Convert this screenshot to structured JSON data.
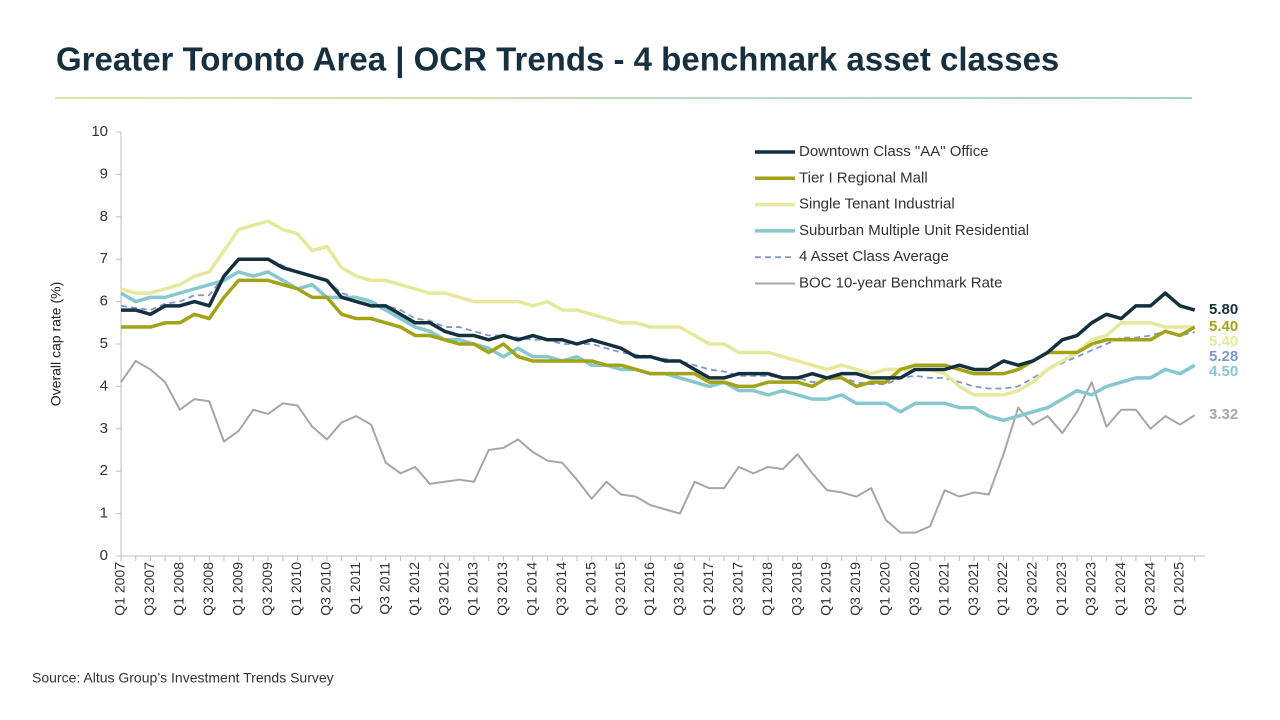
{
  "chart_data": {
    "type": "line",
    "title": "Greater Toronto Area | OCR Trends - 4 benchmark asset classes",
    "y_label": "Overall cap rate (%)",
    "source": "Source:  Altus Group’s Investment Trends Survey",
    "ylim": [
      0,
      10
    ],
    "yticks": [
      0,
      1,
      2,
      3,
      4,
      5,
      6,
      7,
      8,
      9,
      10
    ],
    "grid": false,
    "legend": "top-right",
    "categories": [
      "Q1 2007",
      null,
      "Q3 2007",
      null,
      "Q1 2008",
      null,
      "Q3 2008",
      null,
      "Q1 2009",
      null,
      "Q3 2009",
      null,
      "Q1 2010",
      null,
      "Q3 2010",
      null,
      "Q1 2011",
      null,
      "Q3 2011",
      null,
      "Q1 2012",
      null,
      "Q3 2012",
      null,
      "Q1 2013",
      null,
      "Q3 2013",
      null,
      "Q1 2014",
      null,
      "Q3 2014",
      null,
      "Q1 2015",
      null,
      "Q3 2015",
      null,
      "Q1 2016",
      null,
      "Q3 2016",
      null,
      "Q1 2017",
      null,
      "Q3 2017",
      null,
      "Q1 2018",
      null,
      "Q3 2018",
      null,
      "Q1 2019",
      null,
      "Q3 2019",
      null,
      "Q1 2020",
      null,
      "Q3 2020",
      null,
      "Q1 2021",
      null,
      "Q3 2021",
      null,
      "Q1 2022",
      null,
      "Q3 2022",
      null,
      "Q1 2023",
      null,
      "Q3 2023",
      null,
      "Q1 2024",
      null,
      "Q3 2024",
      null,
      "Q1 2025",
      null
    ],
    "series": [
      {
        "name": "Downtown Class \"AA\" Office",
        "color": "#14303e",
        "width": 3.5,
        "dashed": false,
        "values": [
          5.8,
          5.8,
          5.7,
          5.9,
          5.9,
          6.0,
          5.9,
          6.6,
          7.0,
          7.0,
          7.0,
          6.8,
          6.7,
          6.6,
          6.5,
          6.1,
          6.0,
          5.9,
          5.9,
          5.7,
          5.5,
          5.5,
          5.3,
          5.2,
          5.2,
          5.1,
          5.2,
          5.1,
          5.2,
          5.1,
          5.1,
          5.0,
          5.1,
          5.0,
          4.9,
          4.7,
          4.7,
          4.6,
          4.6,
          4.4,
          4.2,
          4.2,
          4.3,
          4.3,
          4.3,
          4.2,
          4.2,
          4.3,
          4.2,
          4.3,
          4.3,
          4.2,
          4.2,
          4.2,
          4.4,
          4.4,
          4.4,
          4.5,
          4.4,
          4.4,
          4.6,
          4.5,
          4.6,
          4.8,
          5.1,
          5.2,
          5.5,
          5.7,
          5.6,
          5.9,
          5.9,
          6.2,
          5.9,
          5.8
        ],
        "value_labels": [
          null,
          null,
          null,
          null,
          null,
          null,
          null,
          null,
          null,
          null,
          null,
          null,
          null,
          null,
          null,
          null,
          null,
          null,
          null,
          null,
          null,
          null,
          null,
          null,
          null,
          null,
          null,
          null,
          null,
          null,
          null,
          null,
          null,
          null,
          null,
          null,
          null,
          null,
          null,
          null,
          null,
          null,
          null,
          null,
          null,
          null,
          null,
          null,
          null,
          null,
          null,
          null,
          null,
          null,
          null,
          null,
          null,
          null,
          null,
          null,
          null,
          null,
          null,
          null,
          null,
          null,
          null,
          null,
          null,
          null,
          null,
          null,
          null,
          "5.80"
        ]
      },
      {
        "name": "Tier I Regional Mall",
        "color": "#a3a318",
        "width": 3.5,
        "dashed": false,
        "values": [
          5.4,
          5.4,
          5.4,
          5.5,
          5.5,
          5.7,
          5.6,
          6.1,
          6.5,
          6.5,
          6.5,
          6.4,
          6.3,
          6.1,
          6.1,
          5.7,
          5.6,
          5.6,
          5.5,
          5.4,
          5.2,
          5.2,
          5.1,
          5.0,
          5.0,
          4.8,
          5.0,
          4.7,
          4.6,
          4.6,
          4.6,
          4.6,
          4.6,
          4.5,
          4.5,
          4.4,
          4.3,
          4.3,
          4.3,
          4.3,
          4.1,
          4.1,
          4.0,
          4.0,
          4.1,
          4.1,
          4.1,
          4.0,
          4.2,
          4.2,
          4.0,
          4.1,
          4.1,
          4.4,
          4.5,
          4.5,
          4.5,
          4.4,
          4.3,
          4.3,
          4.3,
          4.4,
          4.6,
          4.8,
          4.8,
          4.8,
          5.0,
          5.1,
          5.1,
          5.1,
          5.1,
          5.3,
          5.2,
          5.4
        ],
        "value_labels": [
          null,
          null,
          null,
          null,
          null,
          null,
          null,
          null,
          null,
          null,
          null,
          null,
          null,
          null,
          null,
          null,
          null,
          null,
          null,
          null,
          null,
          null,
          null,
          null,
          null,
          null,
          null,
          null,
          null,
          null,
          null,
          null,
          null,
          null,
          null,
          null,
          null,
          null,
          null,
          null,
          null,
          null,
          null,
          null,
          null,
          null,
          null,
          null,
          null,
          null,
          null,
          null,
          null,
          null,
          null,
          null,
          null,
          null,
          null,
          null,
          null,
          null,
          null,
          null,
          null,
          null,
          null,
          null,
          null,
          null,
          null,
          null,
          null,
          "5.40"
        ]
      },
      {
        "name": "Single Tenant Industrial",
        "color": "#e6e99c",
        "width": 3.5,
        "dashed": false,
        "values": [
          6.3,
          6.2,
          6.2,
          6.3,
          6.4,
          6.6,
          6.7,
          7.2,
          7.7,
          7.8,
          7.9,
          7.7,
          7.6,
          7.2,
          7.3,
          6.8,
          6.6,
          6.5,
          6.5,
          6.4,
          6.3,
          6.2,
          6.2,
          6.1,
          6.0,
          6.0,
          6.0,
          6.0,
          5.9,
          6.0,
          5.8,
          5.8,
          5.7,
          5.6,
          5.5,
          5.5,
          5.4,
          5.4,
          5.4,
          5.2,
          5.0,
          5.0,
          4.8,
          4.8,
          4.8,
          4.7,
          4.6,
          4.5,
          4.4,
          4.5,
          4.4,
          4.3,
          4.4,
          4.4,
          4.4,
          4.4,
          4.3,
          4.0,
          3.8,
          3.8,
          3.8,
          3.9,
          4.1,
          4.4,
          4.6,
          4.8,
          5.1,
          5.2,
          5.5,
          5.5,
          5.5,
          5.4,
          5.4,
          5.4
        ],
        "value_labels": [
          null,
          null,
          null,
          null,
          null,
          null,
          null,
          null,
          null,
          null,
          null,
          null,
          null,
          null,
          null,
          null,
          null,
          null,
          null,
          null,
          null,
          null,
          null,
          null,
          null,
          null,
          null,
          null,
          null,
          null,
          null,
          null,
          null,
          null,
          null,
          null,
          null,
          null,
          null,
          null,
          null,
          null,
          null,
          null,
          null,
          null,
          null,
          null,
          null,
          null,
          null,
          null,
          null,
          null,
          null,
          null,
          null,
          null,
          null,
          null,
          null,
          null,
          null,
          null,
          null,
          null,
          null,
          null,
          null,
          null,
          null,
          null,
          null,
          "5.40"
        ]
      },
      {
        "name": "Suburban Multiple Unit Residential",
        "color": "#86c7d0",
        "width": 3.5,
        "dashed": false,
        "values": [
          6.2,
          6.0,
          6.1,
          6.1,
          6.2,
          6.3,
          6.4,
          6.5,
          6.7,
          6.6,
          6.7,
          6.5,
          6.3,
          6.4,
          6.1,
          6.1,
          6.1,
          6.0,
          5.8,
          5.6,
          5.4,
          5.3,
          5.1,
          5.1,
          5.0,
          4.9,
          4.7,
          4.9,
          4.7,
          4.7,
          4.6,
          4.7,
          4.5,
          4.5,
          4.4,
          4.4,
          4.3,
          4.3,
          4.2,
          4.1,
          4.0,
          4.1,
          3.9,
          3.9,
          3.8,
          3.9,
          3.8,
          3.7,
          3.7,
          3.8,
          3.6,
          3.6,
          3.6,
          3.4,
          3.6,
          3.6,
          3.6,
          3.5,
          3.5,
          3.3,
          3.2,
          3.3,
          3.4,
          3.5,
          3.7,
          3.9,
          3.8,
          4.0,
          4.1,
          4.2,
          4.2,
          4.4,
          4.3,
          4.5
        ],
        "value_labels": [
          null,
          null,
          null,
          null,
          null,
          null,
          null,
          null,
          null,
          null,
          null,
          null,
          null,
          null,
          null,
          null,
          null,
          null,
          null,
          null,
          null,
          null,
          null,
          null,
          null,
          null,
          null,
          null,
          null,
          null,
          null,
          null,
          null,
          null,
          null,
          null,
          null,
          null,
          null,
          null,
          null,
          null,
          null,
          null,
          null,
          null,
          null,
          null,
          null,
          null,
          null,
          null,
          null,
          null,
          null,
          null,
          null,
          null,
          null,
          null,
          null,
          null,
          null,
          null,
          null,
          null,
          null,
          null,
          null,
          null,
          null,
          null,
          null,
          "4.50"
        ]
      },
      {
        "name": "4 Asset Class Average",
        "color": "#8096cc",
        "width": 1.8,
        "dashed": true,
        "values": [
          5.9,
          5.85,
          5.8,
          5.95,
          6.0,
          6.15,
          6.15,
          6.6,
          7.0,
          7.0,
          7.0,
          6.85,
          6.7,
          6.6,
          6.5,
          6.2,
          6.1,
          6.0,
          5.9,
          5.8,
          5.6,
          5.55,
          5.4,
          5.4,
          5.3,
          5.2,
          5.2,
          5.15,
          5.1,
          5.1,
          5.0,
          5.0,
          5.0,
          4.9,
          4.8,
          4.75,
          4.7,
          4.65,
          4.6,
          4.5,
          4.4,
          4.35,
          4.25,
          4.25,
          4.25,
          4.2,
          4.2,
          4.1,
          4.15,
          4.2,
          4.1,
          4.05,
          4.05,
          4.2,
          4.25,
          4.2,
          4.2,
          4.1,
          4.0,
          3.95,
          3.95,
          4.0,
          4.2,
          4.4,
          4.55,
          4.7,
          4.85,
          5.0,
          5.15,
          5.15,
          5.2,
          5.3,
          5.2,
          5.28
        ]
      },
      {
        "name": "BOC 10-year Benchmark Rate",
        "color": "#a6a6a6",
        "width": 2,
        "dashed": false,
        "values": [
          4.1,
          4.6,
          4.4,
          4.1,
          3.45,
          3.7,
          3.65,
          2.7,
          2.95,
          3.45,
          3.35,
          3.6,
          3.55,
          3.05,
          2.75,
          3.15,
          3.3,
          3.1,
          2.2,
          1.95,
          2.1,
          1.7,
          1.75,
          1.8,
          1.75,
          2.5,
          2.55,
          2.75,
          2.45,
          2.25,
          2.2,
          1.8,
          1.35,
          1.75,
          1.45,
          1.4,
          1.2,
          1.1,
          1.0,
          1.75,
          1.6,
          1.6,
          2.1,
          1.95,
          2.1,
          2.05,
          2.4,
          1.95,
          1.55,
          1.5,
          1.4,
          1.6,
          0.85,
          0.55,
          0.55,
          0.7,
          1.55,
          1.4,
          1.5,
          1.45,
          2.4,
          3.5,
          3.1,
          3.3,
          2.9,
          3.4,
          4.1,
          3.05,
          3.45,
          3.45,
          3.0,
          3.3,
          3.1,
          3.32
        ]
      }
    ]
  }
}
